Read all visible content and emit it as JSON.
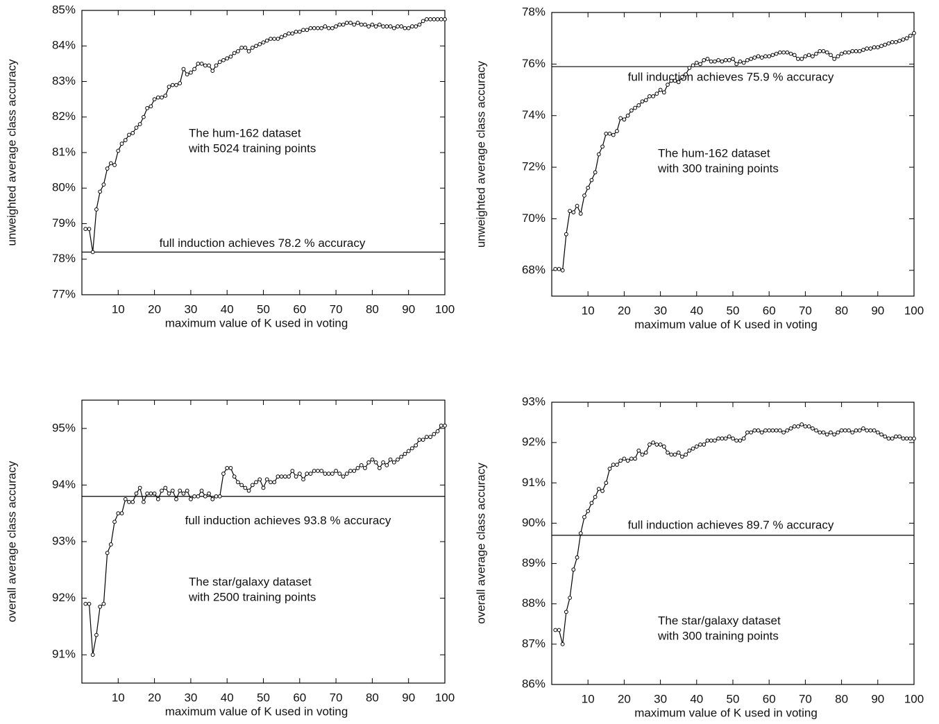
{
  "chart_data": [
    {
      "type": "line",
      "color": "#000000",
      "xlabel": "maximum value of K used in voting",
      "ylabel": "unweighted average class accuracy",
      "reference": 78.2,
      "reference_label": "full induction achieves 78.2 % accuracy",
      "note": [
        "The hum-162 dataset",
        "with 5024 training points"
      ],
      "xlim": [
        0,
        100
      ],
      "ylim": [
        77,
        85
      ],
      "xticks": [
        10,
        20,
        30,
        40,
        50,
        60,
        70,
        80,
        90,
        100
      ],
      "yticks": [
        {
          "value": 77,
          "label": "77%"
        },
        {
          "value": 78,
          "label": "78%"
        },
        {
          "value": 79,
          "label": "79%"
        },
        {
          "value": 80,
          "label": "80%"
        },
        {
          "value": 81,
          "label": "81%"
        },
        {
          "value": 82,
          "label": "82%"
        },
        {
          "value": 83,
          "label": "83%"
        },
        {
          "value": 84,
          "label": "84%"
        },
        {
          "value": 85,
          "label": "85%"
        }
      ],
      "x": [
        1,
        2,
        3,
        4,
        5,
        6,
        7,
        8,
        9,
        10,
        11,
        12,
        13,
        14,
        15,
        16,
        17,
        18,
        19,
        20,
        21,
        22,
        23,
        24,
        25,
        26,
        27,
        28,
        29,
        30,
        31,
        32,
        33,
        34,
        35,
        36,
        37,
        38,
        39,
        40,
        41,
        42,
        43,
        44,
        45,
        46,
        47,
        48,
        49,
        50,
        51,
        52,
        53,
        54,
        55,
        56,
        57,
        58,
        59,
        60,
        61,
        62,
        63,
        64,
        65,
        66,
        67,
        68,
        69,
        70,
        71,
        72,
        73,
        74,
        75,
        76,
        77,
        78,
        79,
        80,
        81,
        82,
        83,
        84,
        85,
        86,
        87,
        88,
        89,
        90,
        91,
        92,
        93,
        94,
        95,
        96,
        97,
        98,
        99,
        100
      ],
      "values": [
        78.85,
        78.85,
        78.2,
        79.4,
        79.9,
        80.1,
        80.55,
        80.7,
        80.65,
        81.05,
        81.25,
        81.35,
        81.5,
        81.55,
        81.7,
        81.8,
        82.0,
        82.25,
        82.3,
        82.5,
        82.55,
        82.55,
        82.6,
        82.85,
        82.9,
        82.9,
        82.95,
        83.35,
        83.2,
        83.25,
        83.35,
        83.5,
        83.5,
        83.45,
        83.45,
        83.3,
        83.45,
        83.55,
        83.6,
        83.65,
        83.7,
        83.8,
        83.85,
        83.95,
        83.95,
        83.85,
        83.95,
        84.0,
        84.05,
        84.1,
        84.15,
        84.2,
        84.2,
        84.2,
        84.25,
        84.3,
        84.35,
        84.35,
        84.4,
        84.4,
        84.45,
        84.45,
        84.5,
        84.5,
        84.5,
        84.5,
        84.55,
        84.5,
        84.5,
        84.55,
        84.6,
        84.6,
        84.65,
        84.65,
        84.6,
        84.65,
        84.6,
        84.6,
        84.55,
        84.6,
        84.55,
        84.6,
        84.55,
        84.55,
        84.55,
        84.5,
        84.55,
        84.55,
        84.5,
        84.5,
        84.55,
        84.55,
        84.6,
        84.7,
        84.75,
        84.75,
        84.75,
        84.75,
        84.75,
        84.75
      ]
    },
    {
      "type": "line",
      "color": "#000000",
      "xlabel": "maximum value of K used in voting",
      "ylabel": "unweighted average class accuracy",
      "reference": 75.9,
      "reference_label": "full induction achieves 75.9 % accuracy",
      "note": [
        "The hum-162 dataset",
        "with 300 training points"
      ],
      "xlim": [
        0,
        100
      ],
      "ylim": [
        67,
        78
      ],
      "xticks": [
        10,
        20,
        30,
        40,
        50,
        60,
        70,
        80,
        90,
        100
      ],
      "yticks": [
        {
          "value": 68,
          "label": "68%"
        },
        {
          "value": 70,
          "label": "70%"
        },
        {
          "value": 72,
          "label": "72%"
        },
        {
          "value": 74,
          "label": "74%"
        },
        {
          "value": 76,
          "label": "76%"
        },
        {
          "value": 78,
          "label": "78%"
        }
      ],
      "x": [
        1,
        2,
        3,
        4,
        5,
        6,
        7,
        8,
        9,
        10,
        11,
        12,
        13,
        14,
        15,
        16,
        17,
        18,
        19,
        20,
        21,
        22,
        23,
        24,
        25,
        26,
        27,
        28,
        29,
        30,
        31,
        32,
        33,
        34,
        35,
        36,
        37,
        38,
        39,
        40,
        41,
        42,
        43,
        44,
        45,
        46,
        47,
        48,
        49,
        50,
        51,
        52,
        53,
        54,
        55,
        56,
        57,
        58,
        59,
        60,
        61,
        62,
        63,
        64,
        65,
        66,
        67,
        68,
        69,
        70,
        71,
        72,
        73,
        74,
        75,
        76,
        77,
        78,
        79,
        80,
        81,
        82,
        83,
        84,
        85,
        86,
        87,
        88,
        89,
        90,
        91,
        92,
        93,
        94,
        95,
        96,
        97,
        98,
        99,
        100
      ],
      "values": [
        68.05,
        68.05,
        68.0,
        69.4,
        70.3,
        70.25,
        70.5,
        70.2,
        70.9,
        71.2,
        71.5,
        71.8,
        72.5,
        72.8,
        73.3,
        73.3,
        73.25,
        73.4,
        73.9,
        73.85,
        74.0,
        74.2,
        74.3,
        74.4,
        74.55,
        74.6,
        74.75,
        74.75,
        74.85,
        75.0,
        74.9,
        75.2,
        75.35,
        75.35,
        75.3,
        75.5,
        75.6,
        75.85,
        75.95,
        76.05,
        76.0,
        76.15,
        76.2,
        76.1,
        76.1,
        76.15,
        76.1,
        76.15,
        76.15,
        76.2,
        76.0,
        76.1,
        76.05,
        76.15,
        76.2,
        76.25,
        76.3,
        76.25,
        76.3,
        76.3,
        76.35,
        76.4,
        76.45,
        76.45,
        76.45,
        76.4,
        76.35,
        76.2,
        76.2,
        76.3,
        76.35,
        76.3,
        76.4,
        76.5,
        76.5,
        76.45,
        76.35,
        76.2,
        76.3,
        76.4,
        76.45,
        76.45,
        76.5,
        76.5,
        76.5,
        76.55,
        76.6,
        76.6,
        76.65,
        76.65,
        76.7,
        76.75,
        76.8,
        76.85,
        76.85,
        76.9,
        76.95,
        77.0,
        77.1,
        77.2
      ]
    },
    {
      "type": "line",
      "color": "#000000",
      "xlabel": "maximum value of K used in voting",
      "ylabel": "overall average class accuracy",
      "reference": 93.8,
      "reference_label": "full induction achieves 93.8 % accuracy",
      "note": [
        "The star/galaxy dataset",
        "with 2500 training points"
      ],
      "xlim": [
        0,
        100
      ],
      "ylim": [
        90.5,
        95.5
      ],
      "xticks": [
        10,
        20,
        30,
        40,
        50,
        60,
        70,
        80,
        90,
        100
      ],
      "yticks": [
        {
          "value": 91,
          "label": "91%"
        },
        {
          "value": 92,
          "label": "92%"
        },
        {
          "value": 93,
          "label": "93%"
        },
        {
          "value": 94,
          "label": "94%"
        },
        {
          "value": 95,
          "label": "95%"
        }
      ],
      "x": [
        1,
        2,
        3,
        4,
        5,
        6,
        7,
        8,
        9,
        10,
        11,
        12,
        13,
        14,
        15,
        16,
        17,
        18,
        19,
        20,
        21,
        22,
        23,
        24,
        25,
        26,
        27,
        28,
        29,
        30,
        31,
        32,
        33,
        34,
        35,
        36,
        37,
        38,
        39,
        40,
        41,
        42,
        43,
        44,
        45,
        46,
        47,
        48,
        49,
        50,
        51,
        52,
        53,
        54,
        55,
        56,
        57,
        58,
        59,
        60,
        61,
        62,
        63,
        64,
        65,
        66,
        67,
        68,
        69,
        70,
        71,
        72,
        73,
        74,
        75,
        76,
        77,
        78,
        79,
        80,
        81,
        82,
        83,
        84,
        85,
        86,
        87,
        88,
        89,
        90,
        91,
        92,
        93,
        94,
        95,
        96,
        97,
        98,
        99,
        100
      ],
      "values": [
        91.9,
        91.9,
        91.0,
        91.35,
        91.85,
        91.9,
        92.8,
        92.95,
        93.35,
        93.5,
        93.5,
        93.75,
        93.7,
        93.7,
        93.85,
        93.95,
        93.7,
        93.85,
        93.85,
        93.85,
        93.75,
        93.9,
        93.95,
        93.85,
        93.9,
        93.75,
        93.9,
        93.85,
        93.9,
        93.75,
        93.8,
        93.8,
        93.9,
        93.8,
        93.85,
        93.75,
        93.8,
        93.8,
        94.2,
        94.3,
        94.3,
        94.15,
        94.05,
        94.0,
        93.95,
        93.9,
        94.0,
        94.05,
        94.1,
        93.95,
        94.1,
        94.05,
        94.05,
        94.15,
        94.15,
        94.15,
        94.15,
        94.25,
        94.15,
        94.2,
        94.1,
        94.2,
        94.2,
        94.25,
        94.25,
        94.25,
        94.2,
        94.2,
        94.2,
        94.25,
        94.2,
        94.15,
        94.2,
        94.25,
        94.25,
        94.3,
        94.35,
        94.3,
        94.4,
        94.45,
        94.4,
        94.3,
        94.4,
        94.35,
        94.45,
        94.4,
        94.45,
        94.5,
        94.55,
        94.6,
        94.65,
        94.7,
        94.8,
        94.8,
        94.85,
        94.85,
        94.9,
        94.95,
        95.05,
        95.05
      ]
    },
    {
      "type": "line",
      "color": "#000000",
      "xlabel": "maximum value of K used in voting",
      "ylabel": "overall average class accuracy",
      "reference": 89.7,
      "reference_label": "full induction achieves 89.7 % accuracy",
      "note": [
        "The star/galaxy dataset",
        "with 300 training points"
      ],
      "xlim": [
        0,
        100
      ],
      "ylim": [
        86,
        93
      ],
      "xticks": [
        10,
        20,
        30,
        40,
        50,
        60,
        70,
        80,
        90,
        100
      ],
      "yticks": [
        {
          "value": 86,
          "label": "86%"
        },
        {
          "value": 87,
          "label": "87%"
        },
        {
          "value": 88,
          "label": "88%"
        },
        {
          "value": 89,
          "label": "89%"
        },
        {
          "value": 90,
          "label": "90%"
        },
        {
          "value": 91,
          "label": "91%"
        },
        {
          "value": 92,
          "label": "92%"
        },
        {
          "value": 93,
          "label": "93%"
        }
      ],
      "x": [
        1,
        2,
        3,
        4,
        5,
        6,
        7,
        8,
        9,
        10,
        11,
        12,
        13,
        14,
        15,
        16,
        17,
        18,
        19,
        20,
        21,
        22,
        23,
        24,
        25,
        26,
        27,
        28,
        29,
        30,
        31,
        32,
        33,
        34,
        35,
        36,
        37,
        38,
        39,
        40,
        41,
        42,
        43,
        44,
        45,
        46,
        47,
        48,
        49,
        50,
        51,
        52,
        53,
        54,
        55,
        56,
        57,
        58,
        59,
        60,
        61,
        62,
        63,
        64,
        65,
        66,
        67,
        68,
        69,
        70,
        71,
        72,
        73,
        74,
        75,
        76,
        77,
        78,
        79,
        80,
        81,
        82,
        83,
        84,
        85,
        86,
        87,
        88,
        89,
        90,
        91,
        92,
        93,
        94,
        95,
        96,
        97,
        98,
        99,
        100
      ],
      "values": [
        87.35,
        87.35,
        87.0,
        87.8,
        88.15,
        88.85,
        89.15,
        89.75,
        90.15,
        90.3,
        90.5,
        90.65,
        90.85,
        90.8,
        91.0,
        91.35,
        91.45,
        91.45,
        91.55,
        91.6,
        91.55,
        91.6,
        91.6,
        91.8,
        91.7,
        91.75,
        91.95,
        92.0,
        91.95,
        91.95,
        91.9,
        91.75,
        91.7,
        91.7,
        91.75,
        91.65,
        91.7,
        91.8,
        91.85,
        91.9,
        91.95,
        91.95,
        92.05,
        92.05,
        92.05,
        92.1,
        92.1,
        92.1,
        92.15,
        92.1,
        92.05,
        92.05,
        92.1,
        92.25,
        92.25,
        92.3,
        92.3,
        92.25,
        92.3,
        92.3,
        92.3,
        92.3,
        92.3,
        92.25,
        92.3,
        92.35,
        92.4,
        92.4,
        92.45,
        92.4,
        92.4,
        92.35,
        92.3,
        92.25,
        92.25,
        92.2,
        92.25,
        92.2,
        92.25,
        92.3,
        92.3,
        92.3,
        92.25,
        92.3,
        92.3,
        92.35,
        92.3,
        92.3,
        92.3,
        92.25,
        92.2,
        92.15,
        92.1,
        92.1,
        92.15,
        92.15,
        92.1,
        92.1,
        92.1,
        92.1
      ]
    }
  ]
}
